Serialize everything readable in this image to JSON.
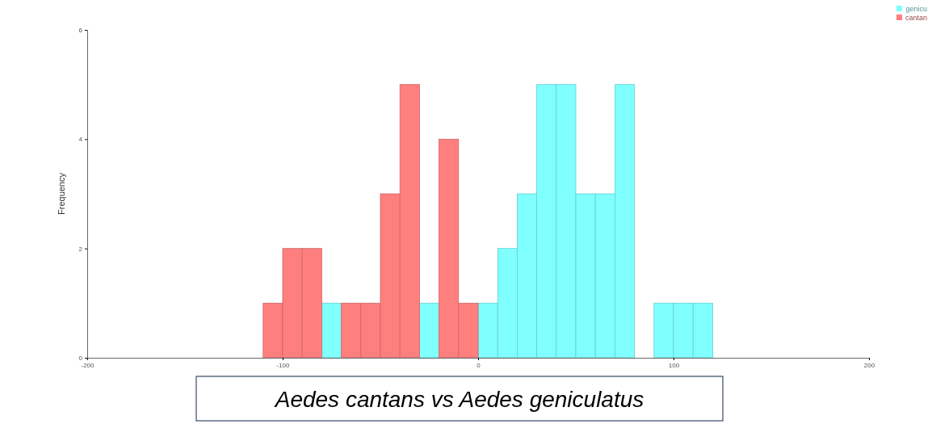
{
  "chart_data": {
    "type": "histogram",
    "title": "Aedes cantans vs Aedes geniculatus",
    "ylabel": "Frequency",
    "bins": [
      -110,
      -100,
      -90,
      -80,
      -70,
      -60,
      -50,
      -40,
      -30,
      -20,
      -10,
      0,
      10,
      20,
      30,
      40,
      50,
      60,
      70,
      80,
      90,
      100,
      110,
      120
    ],
    "series": [
      {
        "name": "genicu",
        "color": "#80ffff",
        "values": [
          0,
          0,
          0,
          1,
          0,
          0,
          0,
          0,
          1,
          0,
          0,
          1,
          2,
          3,
          5,
          5,
          3,
          3,
          5,
          0,
          1,
          1,
          1
        ]
      },
      {
        "name": "cantan",
        "color": "#ff7f7f",
        "values": [
          1,
          2,
          2,
          0,
          1,
          1,
          3,
          5,
          0,
          4,
          1,
          0,
          0,
          0,
          0,
          0,
          0,
          0,
          0,
          0,
          0,
          0,
          0
        ]
      }
    ],
    "xlim": [
      -200,
      200
    ],
    "xticks": [
      -200,
      -100,
      0,
      100,
      200
    ],
    "ylim": [
      0,
      6
    ],
    "yticks": [
      0,
      2,
      4,
      6
    ],
    "legend": "top right",
    "grid": false
  }
}
